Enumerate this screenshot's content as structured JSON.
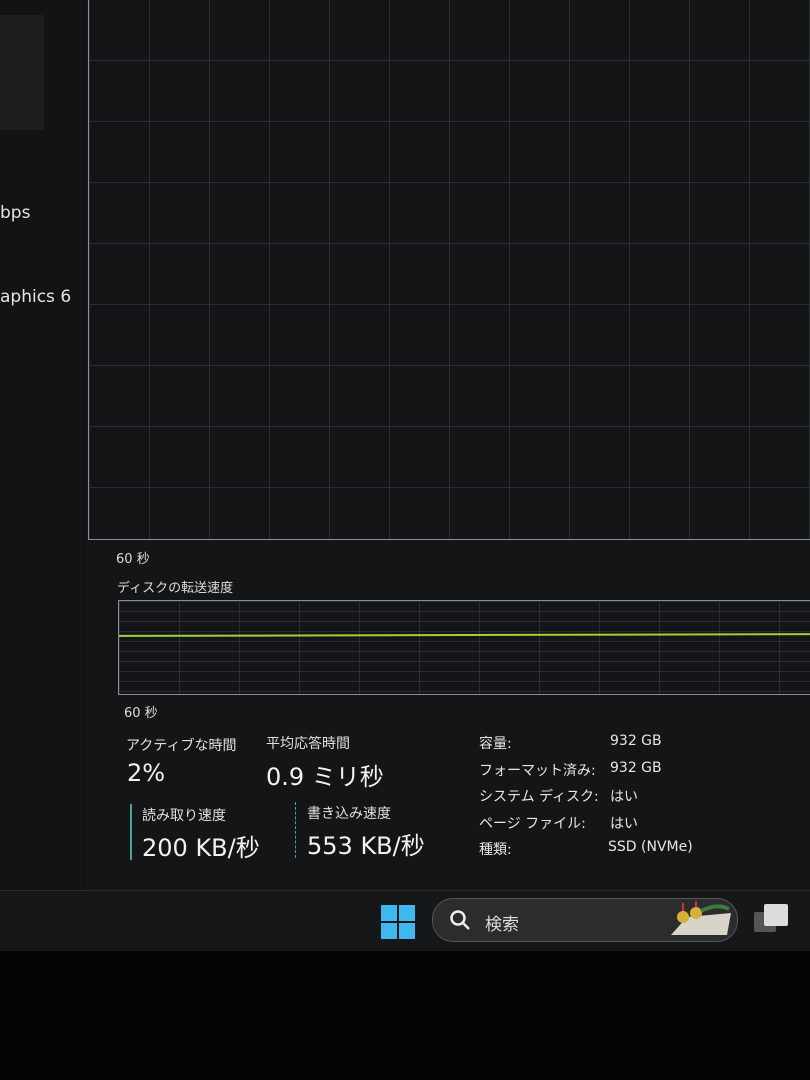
{
  "sidebar": {
    "items": [
      {
        "label": "bps"
      },
      {
        "label": "aphics 6"
      }
    ]
  },
  "main_graph": {
    "time_label": "60 秒"
  },
  "transfer_graph": {
    "title": "ディスクの転送速度",
    "time_label": "60 秒",
    "line_color": "#9fd23a"
  },
  "stats": {
    "active_time": {
      "label": "アクティブな時間",
      "value": "2%"
    },
    "avg_response": {
      "label": "平均応答時間",
      "value": "0.9 ミリ秒"
    },
    "read_speed": {
      "label": "読み取り速度",
      "value": "200 KB/秒"
    },
    "write_speed": {
      "label": "書き込み速度",
      "value": "553 KB/秒"
    }
  },
  "properties": [
    {
      "key": "容量:",
      "value": "932 GB"
    },
    {
      "key": "フォーマット済み:",
      "value": "932 GB"
    },
    {
      "key": "システム ディスク:",
      "value": "はい"
    },
    {
      "key": "ページ ファイル:",
      "value": "はい"
    },
    {
      "key": "種類:",
      "value": "SSD (NVMe)"
    }
  ],
  "taskbar": {
    "search_placeholder": "検索",
    "accent": "#3fb8ef"
  }
}
